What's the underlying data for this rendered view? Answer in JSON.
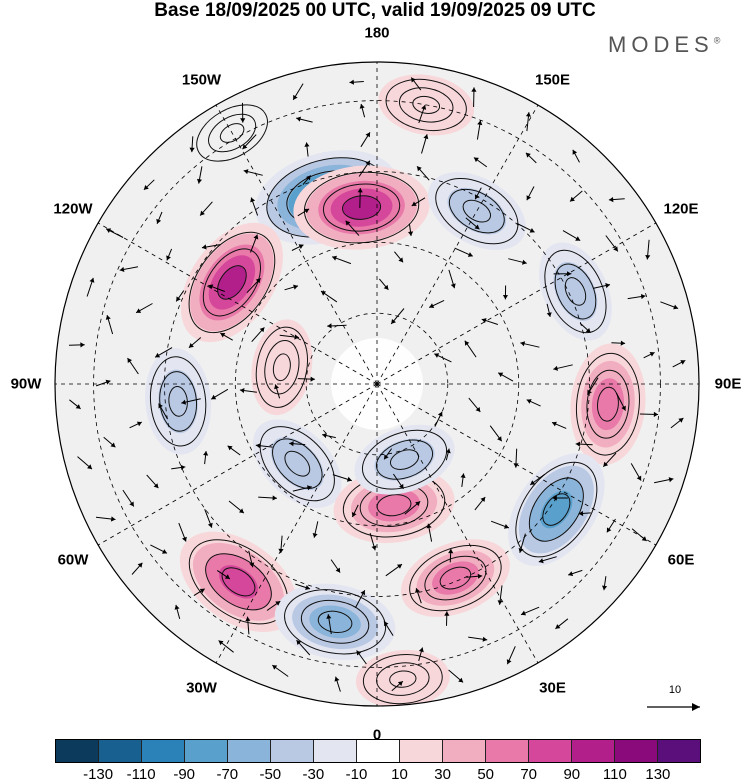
{
  "title": "Base 18/09/2025 00 UTC, valid 19/09/2025 09 UTC",
  "brand": "MODES",
  "brand_mark": "®",
  "longitude_labels": [
    {
      "text": "180",
      "deg": 180
    },
    {
      "text": "150E",
      "deg": 150
    },
    {
      "text": "120E",
      "deg": 120
    },
    {
      "text": "90E",
      "deg": 90
    },
    {
      "text": "60E",
      "deg": 60
    },
    {
      "text": "30E",
      "deg": 30
    },
    {
      "text": "0",
      "deg": 0
    },
    {
      "text": "30W",
      "deg": -30
    },
    {
      "text": "60W",
      "deg": -60
    },
    {
      "text": "90W",
      "deg": -90
    },
    {
      "text": "120W",
      "deg": -120
    },
    {
      "text": "150W",
      "deg": -150
    }
  ],
  "reference_vector": "10",
  "colorbar": {
    "colors": [
      "#0b3a5c",
      "#17608f",
      "#2a82b8",
      "#5aa0cc",
      "#8ab4d9",
      "#b9c9e4",
      "#e3e5f1",
      "#ffffff",
      "#f8d7da",
      "#f2aec1",
      "#e879a8",
      "#d5479a",
      "#b21f8a",
      "#8a0a7c",
      "#5b0f7a"
    ],
    "labels": [
      "-130",
      "-110",
      "-90",
      "-70",
      "-50",
      "-30",
      "-10",
      "10",
      "30",
      "50",
      "70",
      "90",
      "110",
      "130"
    ]
  },
  "anomalies": [
    {
      "lon": -165,
      "r": 0.6,
      "value": -125
    },
    {
      "lon": -175,
      "r": 0.55,
      "value": 105
    },
    {
      "lon": 150,
      "r": 0.62,
      "value": -45
    },
    {
      "lon": -125,
      "r": 0.55,
      "value": 100
    },
    {
      "lon": 115,
      "r": 0.68,
      "value": -40
    },
    {
      "lon": 85,
      "r": 0.72,
      "value": 75
    },
    {
      "lon": 55,
      "r": 0.68,
      "value": -85
    },
    {
      "lon": -85,
      "r": 0.62,
      "value": -45
    },
    {
      "lon": -100,
      "r": 0.3,
      "value": 25
    },
    {
      "lon": -45,
      "r": 0.35,
      "value": -45
    },
    {
      "lon": 8,
      "r": 0.38,
      "value": 75
    },
    {
      "lon": 20,
      "r": 0.25,
      "value": -40
    },
    {
      "lon": 22,
      "r": 0.65,
      "value": 60
    },
    {
      "lon": -35,
      "r": 0.75,
      "value": 95
    },
    {
      "lon": -10,
      "r": 0.75,
      "value": -75
    },
    {
      "lon": 170,
      "r": 0.88,
      "value": 25
    },
    {
      "lon": -150,
      "r": 0.9,
      "value": 15
    },
    {
      "lon": 5,
      "r": 0.92,
      "value": 20
    }
  ]
}
